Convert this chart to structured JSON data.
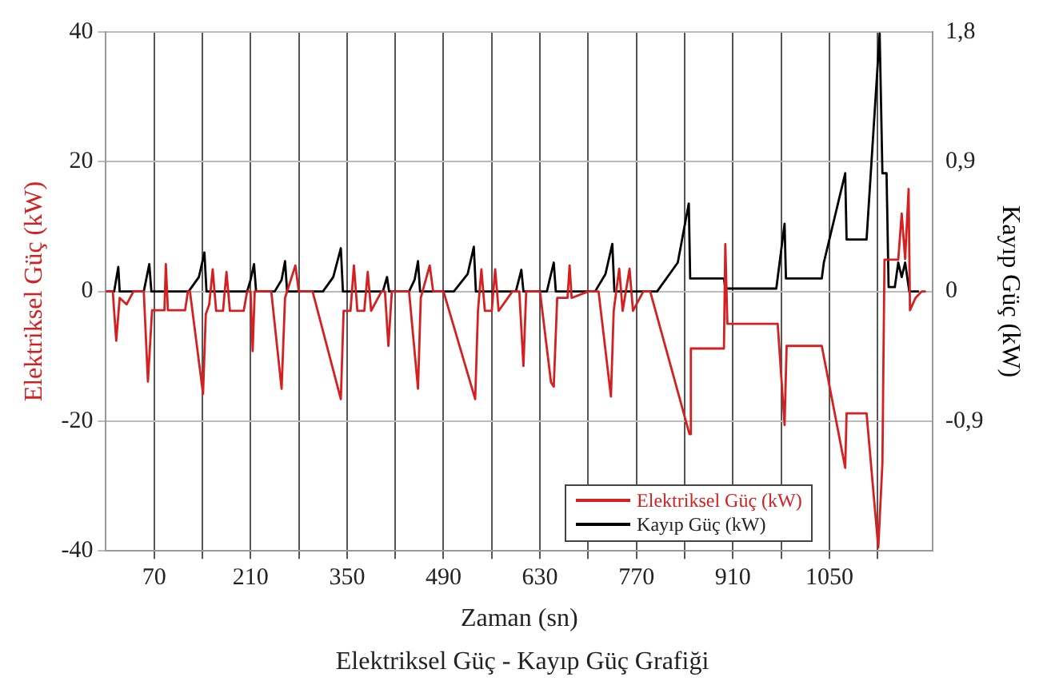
{
  "chart_data": {
    "type": "line",
    "title": "Elektriksel Güç - Kayıp Güç Grafiği",
    "xlabel": "Zaman (sn)",
    "ylabel": "Elektriksel Güç (kW)",
    "y2label": "Kayıp Güç (kW)",
    "xlim": [
      0,
      1200
    ],
    "xticks": [
      70,
      {
        "value": 140,
        "label": null
      },
      210,
      {
        "value": 280,
        "label": null
      },
      350,
      {
        "value": 420,
        "label": null
      },
      490,
      {
        "value": 560,
        "label": null
      },
      630,
      {
        "value": 700,
        "label": null
      },
      770,
      {
        "value": 840,
        "label": null
      },
      910,
      {
        "value": 980,
        "label": null
      },
      1050,
      {
        "value": 1120,
        "label": null
      }
    ],
    "ylim": [
      -40,
      40
    ],
    "yticks": [
      -40,
      -20,
      0,
      20,
      40
    ],
    "y2lim": [
      -1.8,
      1.8
    ],
    "y2ticks": [
      {
        "value": -0.9,
        "label": "-0,9"
      },
      0,
      {
        "value": 0.9,
        "label": "0,9"
      },
      {
        "value": 1.8,
        "label": "1,8"
      }
    ],
    "grid": true,
    "legend": "bottom right",
    "marker": "none",
    "line_style": "solid",
    "series": [
      {
        "name": "Elektriksel Güç (kW)",
        "color": "#d42020",
        "x": [
          0,
          10,
          15,
          20,
          30,
          40,
          55,
          61,
          67,
          85,
          87,
          90,
          115,
          119,
          122,
          141,
          145,
          150,
          155,
          160,
          170,
          175,
          180,
          200,
          205,
          210,
          213,
          216,
          240,
          255,
          260,
          275,
          280,
          300,
          341,
          345,
          355,
          360,
          365,
          375,
          380,
          385,
          400,
          405,
          410,
          415,
          440,
          453,
          457,
          470,
          475,
          490,
          536,
          540,
          545,
          550,
          560,
          565,
          570,
          590,
          600,
          606,
          610,
          630,
          646,
          650,
          655,
          670,
          673,
          676,
          700,
          715,
          733,
          737,
          745,
          750,
          760,
          765,
          780,
          790,
          847,
          849,
          897,
          899,
          902,
          975,
          985,
          988,
          1039,
          1073,
          1075,
          1104,
          1121,
          1127,
          1130,
          1150,
          1155,
          1160,
          1165,
          1167,
          1175,
          1184,
          1190
        ],
        "values": [
          0,
          0,
          -7.6,
          -1,
          -2,
          0,
          0,
          -13.9,
          -2.9,
          -2.9,
          4.2,
          -2.9,
          -2.9,
          0,
          0,
          -15.8,
          -3.5,
          -2,
          3.4,
          -3,
          -3,
          3,
          -3,
          -3,
          0,
          0,
          -9.2,
          0,
          0,
          -15,
          -1,
          4,
          0,
          0,
          -16.6,
          -3,
          -3,
          4,
          -3,
          -3,
          3,
          -3,
          0,
          0,
          -8.4,
          0,
          0,
          -15,
          -1,
          4,
          0,
          0,
          -16.6,
          -3,
          3.4,
          -3,
          -3,
          3.4,
          -3,
          0,
          0,
          -11.5,
          0,
          0,
          -14,
          -14.7,
          -1,
          -1,
          4,
          -1,
          0,
          0,
          -16.2,
          -3,
          3.5,
          -3,
          3.5,
          -3,
          0,
          0,
          -22,
          -8.8,
          -8.8,
          7.3,
          -5,
          -5,
          -20.6,
          -8.4,
          -8.4,
          -27.2,
          -18.8,
          -18.8,
          -39.5,
          -26.5,
          4.9,
          4.9,
          12,
          5,
          15.8,
          -2.9,
          -1,
          0,
          0
        ]
      },
      {
        "name": "Kayıp Güç (kW)",
        "color": "#000000",
        "axis": "y2",
        "x": [
          0,
          12,
          18,
          20,
          55,
          63,
          66,
          120,
          135,
          143,
          146,
          205,
          210,
          215,
          218,
          245,
          255,
          260,
          263,
          315,
          330,
          341,
          344,
          402,
          408,
          411,
          440,
          448,
          453,
          456,
          505,
          525,
          534,
          537,
          595,
          603,
          606,
          640,
          650,
          653,
          710,
          725,
          735,
          738,
          800,
          830,
          846,
          848,
          897,
          899,
          973,
          985,
          987,
          1039,
          1042,
          1073,
          1075,
          1104,
          1123,
          1127,
          1133,
          1136,
          1145,
          1150,
          1155,
          1160,
          1166,
          1180
        ],
        "values": [
          0,
          0,
          0.17,
          0,
          0,
          0.19,
          0,
          0,
          0.1,
          0.27,
          0,
          0,
          0.08,
          0.19,
          0,
          0,
          0.08,
          0.21,
          0,
          0,
          0.1,
          0.3,
          0,
          0,
          0.1,
          0,
          0,
          0.08,
          0.21,
          0,
          0,
          0.12,
          0.31,
          0,
          0,
          0.15,
          0,
          0,
          0.2,
          0,
          0,
          0.12,
          0.33,
          0,
          0,
          0.2,
          0.61,
          0.09,
          0.09,
          0.02,
          0.02,
          0.47,
          0.09,
          0.09,
          0.2,
          0.82,
          0.36,
          0.36,
          1.79,
          0.82,
          0.82,
          0.03,
          0.03,
          0.2,
          0.1,
          0.2,
          0,
          0
        ]
      }
    ]
  }
}
